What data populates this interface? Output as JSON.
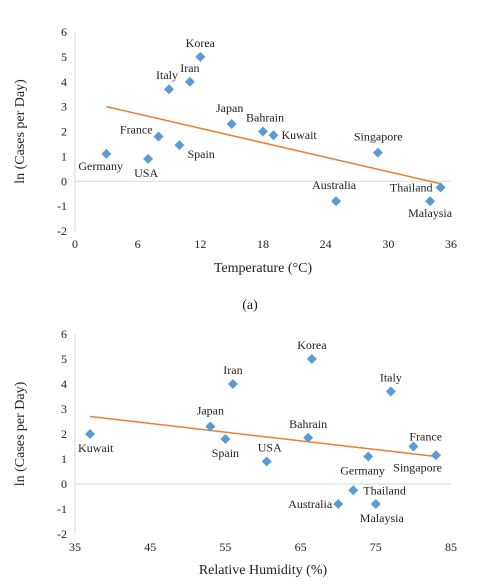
{
  "caption_a": "(a)",
  "colors": {
    "marker": "#5b9bd5",
    "trendline": "#ed7d31",
    "axis": "#d9d9d9"
  },
  "chart_data": [
    {
      "type": "scatter",
      "xlabel": "Temperature (°C)",
      "ylabel": "ln (Cases per Day)",
      "xlim": [
        0,
        36
      ],
      "ylim": [
        -2,
        6
      ],
      "xticks": [
        0,
        6,
        12,
        18,
        24,
        30,
        36
      ],
      "yticks": [
        -2,
        -1,
        0,
        1,
        2,
        3,
        4,
        5,
        6
      ],
      "grid": false,
      "points": [
        {
          "label": "Korea",
          "x": 12,
          "y": 5.0
        },
        {
          "label": "Iran",
          "x": 11,
          "y": 4.0
        },
        {
          "label": "Italy",
          "x": 9,
          "y": 3.7
        },
        {
          "label": "Japan",
          "x": 15,
          "y": 2.3
        },
        {
          "label": "Bahrain",
          "x": 18,
          "y": 2.0
        },
        {
          "label": "Kuwait",
          "x": 19,
          "y": 1.85
        },
        {
          "label": "France",
          "x": 8,
          "y": 1.8
        },
        {
          "label": "Spain",
          "x": 10,
          "y": 1.45
        },
        {
          "label": "Germany",
          "x": 3,
          "y": 1.1
        },
        {
          "label": "USA",
          "x": 7,
          "y": 0.9
        },
        {
          "label": "Singapore",
          "x": 29,
          "y": 1.15
        },
        {
          "label": "Australia",
          "x": 25,
          "y": -0.8
        },
        {
          "label": "Thailand",
          "x": 35,
          "y": -0.25
        },
        {
          "label": "Malaysia",
          "x": 34,
          "y": -0.8
        }
      ],
      "trendline": {
        "x1": 3,
        "y1": 3.0,
        "x2": 35,
        "y2": -0.1
      }
    },
    {
      "type": "scatter",
      "xlabel": "Relative Humidity (%)",
      "ylabel": "ln (Cases per Day)",
      "xlim": [
        35,
        85
      ],
      "ylim": [
        -2,
        6
      ],
      "xticks": [
        35,
        45,
        55,
        65,
        75,
        85
      ],
      "yticks": [
        -2,
        -1,
        0,
        1,
        2,
        3,
        4,
        5,
        6
      ],
      "grid": false,
      "points": [
        {
          "label": "Korea",
          "x": 66.5,
          "y": 5.0
        },
        {
          "label": "Iran",
          "x": 56,
          "y": 4.0
        },
        {
          "label": "Italy",
          "x": 77,
          "y": 3.7
        },
        {
          "label": "Japan",
          "x": 53,
          "y": 2.3
        },
        {
          "label": "Bahrain",
          "x": 66,
          "y": 1.85
        },
        {
          "label": "Kuwait",
          "x": 37,
          "y": 2.0
        },
        {
          "label": "Spain",
          "x": 55,
          "y": 1.8
        },
        {
          "label": "USA",
          "x": 60.5,
          "y": 0.9
        },
        {
          "label": "France",
          "x": 80,
          "y": 1.5
        },
        {
          "label": "Germany",
          "x": 74,
          "y": 1.1
        },
        {
          "label": "Singapore",
          "x": 83,
          "y": 1.15
        },
        {
          "label": "Thailand",
          "x": 72,
          "y": -0.25
        },
        {
          "label": "Australia",
          "x": 70,
          "y": -0.8
        },
        {
          "label": "Malaysia",
          "x": 75,
          "y": -0.8
        }
      ],
      "trendline": {
        "x1": 37,
        "y1": 2.7,
        "x2": 83,
        "y2": 1.1
      }
    }
  ]
}
